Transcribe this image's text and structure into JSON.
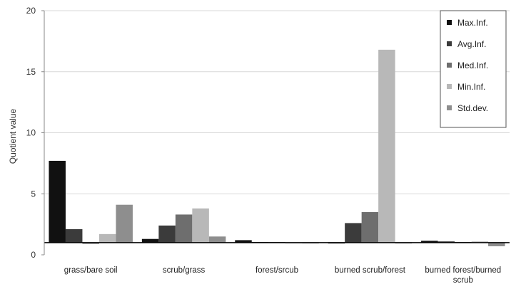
{
  "chart_data": {
    "type": "bar",
    "title": "",
    "xlabel": "",
    "ylabel": "Quotient value",
    "ylim": [
      0,
      20
    ],
    "yticks": [
      0,
      5,
      10,
      15,
      20
    ],
    "grid": true,
    "legend_position": "top-right",
    "baseline": 1,
    "categories": [
      [
        "grass/bare soil"
      ],
      [
        "scrub/grass"
      ],
      [
        "forest/srcub"
      ],
      [
        "burned scrub/forest"
      ],
      [
        "burned forest/burned",
        "scrub"
      ]
    ],
    "series": [
      {
        "name": "Max.Inf.",
        "color": "#111111",
        "values": [
          7.7,
          1.3,
          1.2,
          1.0,
          1.15
        ]
      },
      {
        "name": "Avg.Inf.",
        "color": "#3b3b3b",
        "values": [
          2.1,
          2.4,
          1.05,
          2.6,
          1.1
        ]
      },
      {
        "name": "Med.Inf.",
        "color": "#6e6e6e",
        "values": [
          0.9,
          3.3,
          1.05,
          3.5,
          1.05
        ]
      },
      {
        "name": "Min.Inf.",
        "color": "#b8b8b8",
        "values": [
          1.7,
          3.8,
          1.0,
          16.8,
          1.1
        ]
      },
      {
        "name": "Std.dev.",
        "color": "#8e8e8e",
        "values": [
          4.1,
          1.5,
          1.0,
          1.0,
          0.7
        ]
      }
    ]
  }
}
